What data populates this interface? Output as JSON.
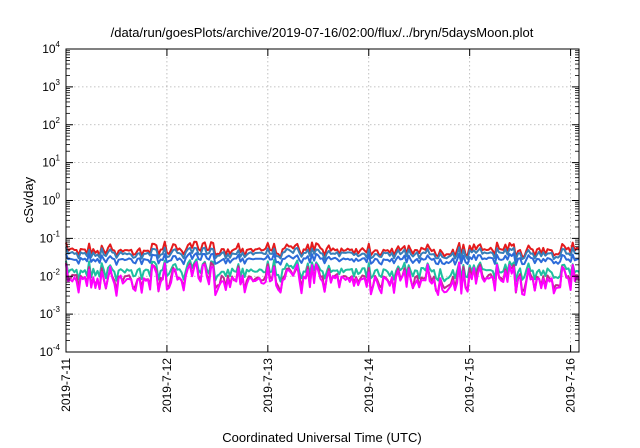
{
  "chart_data": {
    "type": "line",
    "title": "/data/run/goesPlots/archive/2019-07-16/02:00/flux/../bryn/5daysMoon.plot",
    "xlabel": "Coordinated Universal Time (UTC)",
    "ylabel": "cSv/day",
    "y_scale": "log",
    "ylim": [
      0.0001,
      10000
    ],
    "xlim": [
      "2019-07-11T00:00",
      "2019-07-16T02:00"
    ],
    "y_ticks": [
      {
        "base": "10",
        "exp": "-4"
      },
      {
        "base": "10",
        "exp": "-3"
      },
      {
        "base": "10",
        "exp": "-2"
      },
      {
        "base": "10",
        "exp": "-1"
      },
      {
        "base": "10",
        "exp": "0"
      },
      {
        "base": "10",
        "exp": "1"
      },
      {
        "base": "10",
        "exp": "2"
      },
      {
        "base": "10",
        "exp": "3"
      },
      {
        "base": "10",
        "exp": "4"
      }
    ],
    "x_ticks": [
      "2019-7-11",
      "2019-7-12",
      "2019-7-13",
      "2019-7-14",
      "2019-7-15",
      "2019-7-16"
    ],
    "grid": true,
    "legend": "none",
    "series": [
      {
        "color": "#e41a1c",
        "level": 0.05,
        "spread": 0.16
      },
      {
        "color": "#377eb8",
        "level": 0.04,
        "spread": 0.13
      },
      {
        "color": "#2c6bd9",
        "level": 0.028,
        "spread": 0.12
      },
      {
        "color": "#1fbfa0",
        "level": 0.014,
        "spread": 0.22
      },
      {
        "color": "#c02c8c",
        "level": 0.009,
        "spread": 0.3
      },
      {
        "color": "#ff00ff",
        "level": 0.008,
        "spread": 0.34
      }
    ]
  }
}
